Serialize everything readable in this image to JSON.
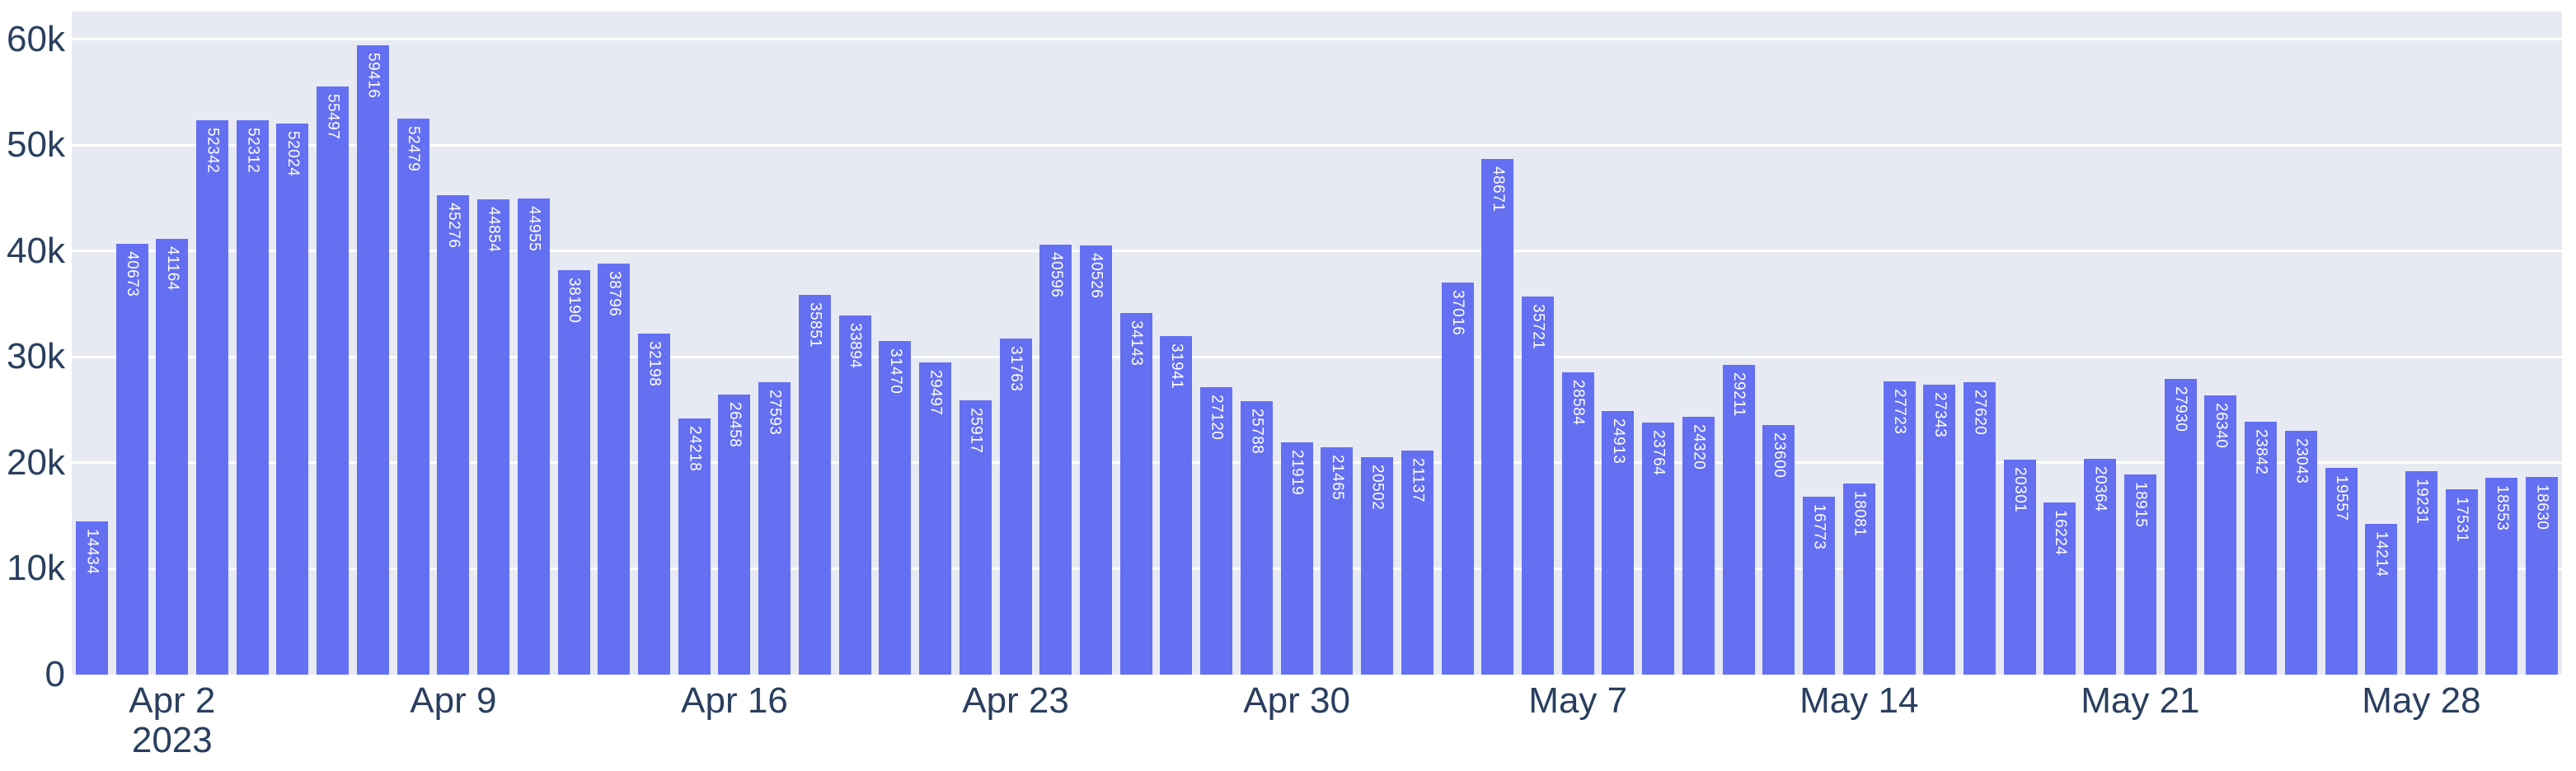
{
  "chart_data": {
    "type": "bar",
    "title": "",
    "xlabel": "",
    "ylabel": "",
    "legend": "none",
    "grid": "horizontal",
    "bar_value_labels_shown": true,
    "values": [
      14434,
      40673,
      41164,
      52342,
      52312,
      52024,
      55497,
      59416,
      52479,
      45276,
      44854,
      44955,
      38190,
      38796,
      32198,
      24218,
      26458,
      27593,
      35851,
      33894,
      31470,
      29497,
      25917,
      31763,
      40596,
      40526,
      34143,
      31941,
      27120,
      25788,
      21919,
      21465,
      20502,
      21137,
      37016,
      48671,
      35721,
      28584,
      24913,
      23764,
      24320,
      29211,
      23600,
      16773,
      18081,
      27723,
      27343,
      27620,
      20301,
      16224,
      20364,
      18915,
      27930,
      26340,
      23842,
      23043,
      19557,
      14214,
      19231,
      17531,
      18553,
      18630
    ],
    "x_ticks": [
      {
        "bar_index": 2,
        "label": "Apr 2",
        "sublabel": "2023"
      },
      {
        "bar_index": 9,
        "label": "Apr 9"
      },
      {
        "bar_index": 16,
        "label": "Apr 16"
      },
      {
        "bar_index": 23,
        "label": "Apr 23"
      },
      {
        "bar_index": 30,
        "label": "Apr 30"
      },
      {
        "bar_index": 37,
        "label": "May 7"
      },
      {
        "bar_index": 44,
        "label": "May 14"
      },
      {
        "bar_index": 51,
        "label": "May 21"
      },
      {
        "bar_index": 58,
        "label": "May 28"
      }
    ],
    "y_ticks": [
      {
        "value": 0,
        "label": "0"
      },
      {
        "value": 10000,
        "label": "10k"
      },
      {
        "value": 20000,
        "label": "20k"
      },
      {
        "value": 30000,
        "label": "30k"
      },
      {
        "value": 40000,
        "label": "40k"
      },
      {
        "value": 50000,
        "label": "50k"
      },
      {
        "value": 60000,
        "label": "60k"
      }
    ],
    "ylim": [
      0,
      62600
    ],
    "colors": {
      "bar_fill": "#6470F1",
      "plot_background": "#E7EAF3",
      "gridline": "#FFFFFF",
      "axis_text": "#2A3F5F",
      "bar_label_text": "#FFFFFF",
      "page_background": "#FFFFFF"
    }
  }
}
